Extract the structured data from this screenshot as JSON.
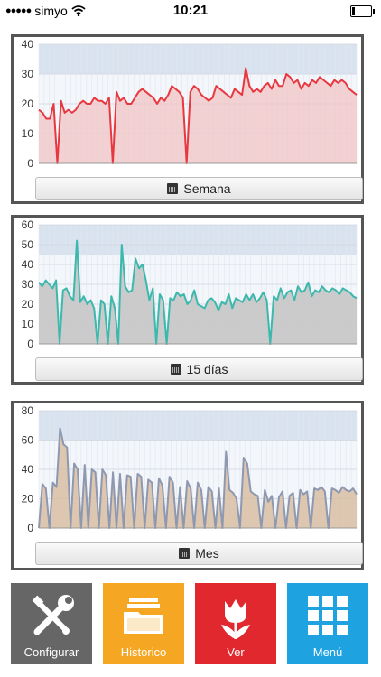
{
  "status": {
    "carrier": "simyo",
    "time": "10:21",
    "battery_level": 0.15
  },
  "colors": {
    "week_line": "#e8383f",
    "week_fill": "#f2c4c6",
    "fifteen_line": "#3cb8ad",
    "fifteen_fill": "#c6c6c6",
    "month_line": "#8e98b0",
    "month_fill": "#d8bea2",
    "band": "#d9e3ef",
    "tile_config": "#666666",
    "tile_history": "#f5a623",
    "tile_view": "#e0282e",
    "tile_menu": "#1ea3e0"
  },
  "charts": [
    {
      "id": "week",
      "button_label": "Semana",
      "ylim": [
        0,
        40
      ],
      "yticks": [
        "0",
        "10",
        "20",
        "30",
        "40"
      ],
      "band": [
        30,
        45
      ],
      "values": [
        18,
        17,
        15,
        15,
        20,
        0,
        21,
        17,
        18,
        17,
        18,
        20,
        21,
        20,
        20,
        22,
        21,
        21,
        20,
        22,
        0,
        24,
        21,
        22,
        20,
        20,
        22,
        24,
        25,
        24,
        23,
        22,
        20,
        22,
        21,
        23,
        26,
        25,
        24,
        22,
        0,
        24,
        26,
        25,
        23,
        22,
        21,
        22,
        26,
        25,
        24,
        23,
        22,
        25,
        24,
        23,
        32,
        26,
        24,
        25,
        24,
        26,
        27,
        25,
        28,
        26,
        26,
        30,
        29,
        27,
        28,
        25,
        27,
        26,
        28,
        27,
        29,
        28,
        27,
        26,
        28,
        27,
        28,
        27,
        25,
        24,
        23
      ]
    },
    {
      "id": "fifteen",
      "button_label": "15 días",
      "ylim": [
        0,
        60
      ],
      "yticks": [
        "0",
        "10",
        "20",
        "30",
        "40",
        "50",
        "60"
      ],
      "band": [
        45,
        65
      ],
      "values": [
        31,
        29,
        32,
        30,
        28,
        32,
        0,
        27,
        28,
        24,
        22,
        52,
        21,
        24,
        20,
        22,
        18,
        0,
        22,
        20,
        0,
        24,
        18,
        0,
        50,
        29,
        26,
        27,
        43,
        38,
        40,
        32,
        22,
        28,
        0,
        25,
        22,
        0,
        23,
        22,
        26,
        24,
        25,
        20,
        22,
        27,
        20,
        19,
        18,
        22,
        23,
        21,
        17,
        21,
        20,
        25,
        18,
        23,
        22,
        21,
        25,
        22,
        25,
        21,
        23,
        26,
        22,
        0,
        24,
        22,
        28,
        23,
        26,
        27,
        22,
        29,
        26,
        27,
        31,
        24,
        27,
        26,
        29,
        27,
        26,
        28,
        27,
        25,
        28,
        27,
        26,
        24,
        23
      ]
    },
    {
      "id": "month",
      "button_label": "Mes",
      "ylim": [
        0,
        80
      ],
      "yticks": [
        "0",
        "20",
        "40",
        "60",
        "80"
      ],
      "band": [
        60,
        85
      ],
      "values": [
        0,
        30,
        27,
        0,
        31,
        28,
        68,
        57,
        55,
        0,
        44,
        40,
        0,
        43,
        0,
        40,
        38,
        0,
        40,
        36,
        0,
        38,
        0,
        37,
        0,
        36,
        35,
        0,
        37,
        35,
        0,
        33,
        31,
        0,
        34,
        29,
        0,
        35,
        31,
        0,
        28,
        0,
        32,
        27,
        0,
        31,
        26,
        0,
        28,
        25,
        0,
        27,
        0,
        52,
        26,
        24,
        20,
        0,
        48,
        44,
        25,
        23,
        22,
        0,
        26,
        18,
        22,
        0,
        21,
        25,
        0,
        22,
        24,
        0,
        26,
        23,
        25,
        0,
        27,
        26,
        28,
        25,
        0,
        27,
        26,
        24,
        28,
        26,
        25,
        27,
        23
      ]
    }
  ],
  "tiles": [
    {
      "id": "config",
      "label": "Configurar",
      "icon": "tools-icon"
    },
    {
      "id": "history",
      "label": "Historico",
      "icon": "folder-icon"
    },
    {
      "id": "view",
      "label": "Ver",
      "icon": "tulip-icon"
    },
    {
      "id": "menu",
      "label": "Menú",
      "icon": "grid-icon"
    }
  ]
}
